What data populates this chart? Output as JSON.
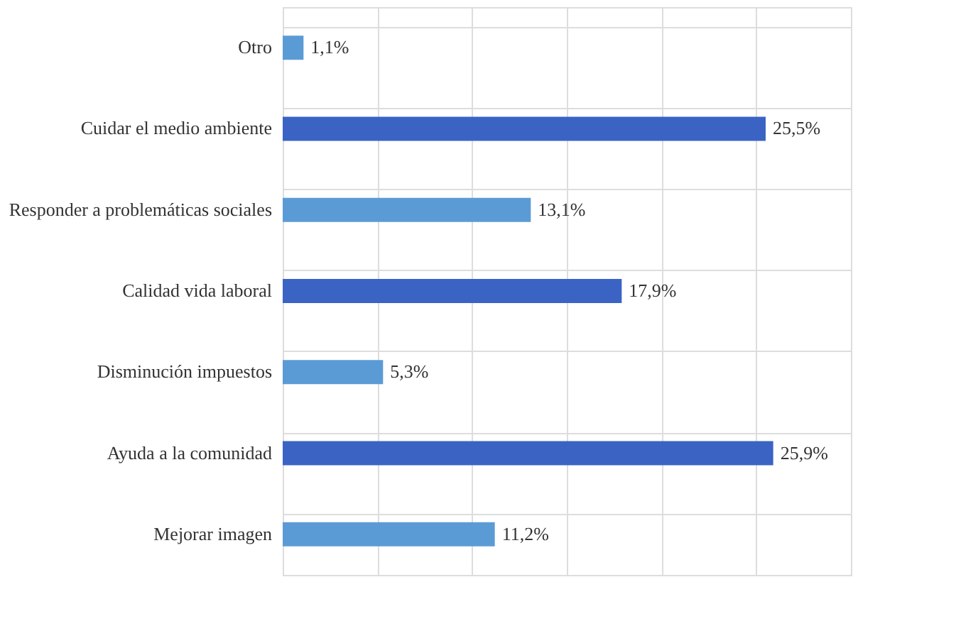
{
  "chart_data": {
    "type": "bar",
    "orientation": "horizontal",
    "categories": [
      "Otro",
      "Cuidar el medio ambiente",
      "Responder a problemáticas sociales",
      "Calidad vida laboral",
      "Disminución impuestos",
      "Ayuda a la comunidad",
      "Mejorar imagen"
    ],
    "values": [
      1.1,
      25.5,
      13.1,
      17.9,
      5.3,
      25.9,
      11.2
    ],
    "value_labels": [
      "1,1%",
      "25,5%",
      "13,1%",
      "17,9%",
      "5,3%",
      "25,9%",
      "11,2%"
    ],
    "colors": [
      "#5b9bd5",
      "#3a63c4",
      "#5b9bd5",
      "#3a63c4",
      "#5b9bd5",
      "#3a63c4",
      "#5b9bd5"
    ],
    "xlim": [
      0,
      30
    ],
    "xticks": [
      {
        "value": 0,
        "label": null
      },
      {
        "value": 5,
        "label": null
      },
      {
        "value": 10,
        "label": null
      },
      {
        "value": 15,
        "label": null
      },
      {
        "value": 20,
        "label": null
      },
      {
        "value": 25,
        "label": null
      },
      {
        "value": 30,
        "label": null
      }
    ],
    "tick_labels": "y",
    "grid": true
  }
}
